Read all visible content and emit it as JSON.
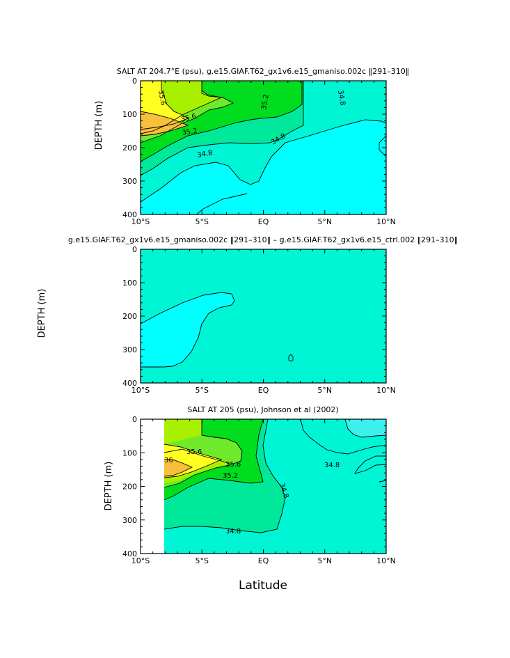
{
  "colors": {
    "c_cyan": "#00ffff",
    "c_aqua": "#00f5d5",
    "c_seagreen": "#00e99a",
    "c_green": "#00dd1e",
    "c_lime": "#6fea2b",
    "c_yellowgreen": "#a8f000",
    "c_yellow": "#ffff22",
    "c_orange": "#f7bf3c",
    "c_paleaqua": "#3cf0f0",
    "c_white": "#ffffff"
  },
  "chart_data": [
    {
      "type": "contour",
      "title": "SALT AT 204.7°E (psu), g.e15.GIAF.T62_gx1v6.e15_gmaniso.002c ‖291–310‖",
      "ylabel": "DEPTH (m)",
      "xlabel": "",
      "x_ticks": [
        "10°S",
        "5°S",
        "EQ",
        "5°N",
        "10°N"
      ],
      "x_range": [
        -10,
        10
      ],
      "y_ticks": [
        "0",
        "100",
        "200",
        "300",
        "400"
      ],
      "y_range": [
        0,
        400
      ],
      "contour_labels": [
        "35.6",
        "35.2",
        "34.8",
        "35.6",
        "35.2",
        "34.8",
        "34.8"
      ],
      "levels": [
        34.8,
        35.0,
        35.2,
        35.4,
        35.6,
        35.8
      ]
    },
    {
      "type": "contour",
      "title": "g.e15.GIAF.T62_gx1v6.e15_gmaniso.002c ‖291–310‖ – g.e15.GIAF.T62_gx1v6.e15_ctrl.002 ‖291–310‖",
      "ylabel": "DEPTH (m)",
      "xlabel": "",
      "x_ticks": [
        "10°S",
        "5°S",
        "EQ",
        "5°N",
        "10°N"
      ],
      "x_range": [
        -10,
        10
      ],
      "y_ticks": [
        "0",
        "100",
        "200",
        "300",
        "400"
      ],
      "y_range": [
        0,
        400
      ],
      "contour_labels": [],
      "levels": [
        0
      ]
    },
    {
      "type": "contour",
      "title": "SALT AT 205 (psu), Johnson et al (2002)",
      "ylabel": "DEPTH (m)",
      "xlabel": "Latitude",
      "x_ticks": [
        "10°S",
        "5°S",
        "EQ",
        "5°N",
        "10°N"
      ],
      "x_range": [
        -10,
        10
      ],
      "y_ticks": [
        "0",
        "100",
        "200",
        "300",
        "400"
      ],
      "y_range": [
        0,
        400
      ],
      "contour_labels": [
        "35.6",
        "36",
        "35.6",
        "35.2",
        "34.8",
        "34.8",
        "34.8"
      ],
      "levels": [
        34.8,
        35.0,
        35.2,
        35.4,
        35.6,
        35.8,
        36.0
      ]
    }
  ]
}
